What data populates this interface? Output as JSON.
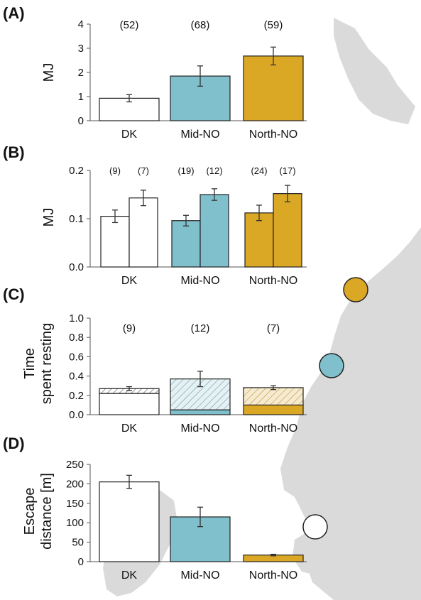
{
  "colors": {
    "DK": "#ffffff",
    "Mid-NO": "#7fc0cc",
    "North-NO": "#dba826",
    "map_land": "#dadada",
    "bar_edge": "#222222"
  },
  "chart_data": [
    {
      "panel": "(A)",
      "type": "bar",
      "ylabel": "MJ",
      "ylim": [
        0,
        4
      ],
      "yticks": [
        "0",
        "1",
        "2",
        "3",
        "4"
      ],
      "yticks_values": [
        0,
        1,
        2,
        3,
        4
      ],
      "categories": [
        "DK",
        "Mid-NO",
        "North-NO"
      ],
      "values": [
        0.93,
        1.85,
        2.68
      ],
      "errors": [
        0.15,
        0.42,
        0.37
      ],
      "n_labels": [
        "(52)",
        "(68)",
        "(59)"
      ]
    },
    {
      "panel": "(B)",
      "type": "bar",
      "ylabel": "MJ",
      "ylim": [
        0,
        0.2
      ],
      "yticks": [
        "0.0",
        "0.1",
        "0.2"
      ],
      "yticks_values": [
        0,
        0.1,
        0.2
      ],
      "categories": [
        "DK",
        "Mid-NO",
        "North-NO"
      ],
      "series": [
        {
          "values": [
            0.105,
            0.096,
            0.112
          ],
          "errors": [
            0.013,
            0.011,
            0.016
          ]
        },
        {
          "values": [
            0.143,
            0.15,
            0.152
          ],
          "errors": [
            0.016,
            0.012,
            0.017
          ]
        }
      ],
      "n_labels": [
        [
          "(9)",
          "(7)"
        ],
        [
          "(19)",
          "(12)"
        ],
        [
          "(24)",
          "(17)"
        ]
      ]
    },
    {
      "panel": "(C)",
      "type": "bar",
      "ylabel": [
        "Time",
        "spent resting"
      ],
      "ylim": [
        0,
        1.0
      ],
      "yticks": [
        "0.0",
        "0.2",
        "0.4",
        "0.6",
        "0.8",
        "1.0"
      ],
      "yticks_values": [
        0,
        0.2,
        0.4,
        0.6,
        0.8,
        1.0
      ],
      "categories": [
        "DK",
        "Mid-NO",
        "North-NO"
      ],
      "solid_values": [
        0.22,
        0.05,
        0.1
      ],
      "hatched_values": [
        0.05,
        0.32,
        0.18
      ],
      "totals": [
        0.27,
        0.37,
        0.28
      ],
      "errors": [
        0.02,
        0.08,
        0.02
      ],
      "n_labels": [
        "(9)",
        "(12)",
        "(7)"
      ]
    },
    {
      "panel": "(D)",
      "type": "bar",
      "ylabel": [
        "Escape",
        "distance [m]"
      ],
      "ylim": [
        0,
        250
      ],
      "yticks": [
        "0",
        "50",
        "100",
        "150",
        "200",
        "250"
      ],
      "yticks_values": [
        0,
        50,
        100,
        150,
        200,
        250
      ],
      "categories": [
        "DK",
        "Mid-NO",
        "North-NO"
      ],
      "values": [
        205,
        115,
        17
      ],
      "errors": [
        17,
        25,
        2
      ]
    }
  ],
  "map_markers": [
    {
      "site": "North-NO",
      "color": "#dba826"
    },
    {
      "site": "Mid-NO",
      "color": "#7fc0cc"
    },
    {
      "site": "DK",
      "color": "#ffffff"
    }
  ]
}
